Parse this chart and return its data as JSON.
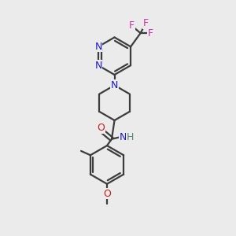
{
  "bg_color": "#ebebeb",
  "bond_color": "#3c3c3c",
  "N_color": "#1a1acc",
  "O_color": "#cc1a1a",
  "F_color": "#cc33aa",
  "NH_color": "#2266aa",
  "lw": 1.6,
  "fs": 9.0,
  "xlim": [
    0,
    10
  ],
  "ylim": [
    0,
    10
  ]
}
